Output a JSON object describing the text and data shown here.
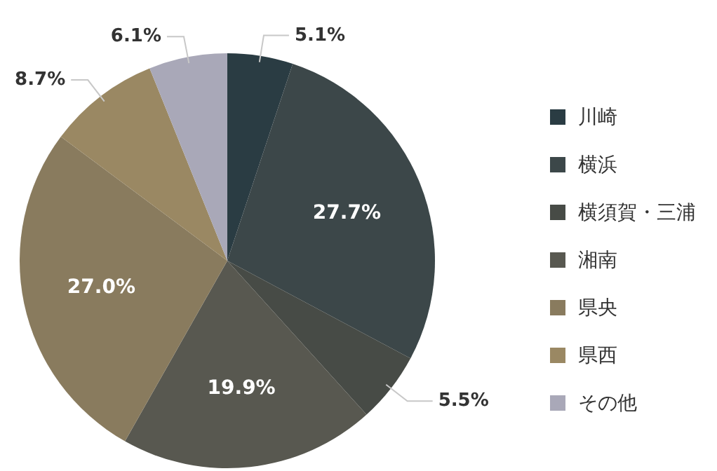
{
  "chart_data": {
    "type": "pie",
    "categories": [
      "川崎",
      "横浜",
      "横須賀・三浦",
      "湘南",
      "県央",
      "県西",
      "その他"
    ],
    "values": [
      5.1,
      27.7,
      5.5,
      19.9,
      27.0,
      8.7,
      6.1
    ],
    "value_labels": [
      "5.1%",
      "27.7%",
      "5.5%",
      "19.9%",
      "27.0%",
      "8.7%",
      "6.1%"
    ],
    "colors": [
      "#2a3c43",
      "#3c4749",
      "#474b46",
      "#585850",
      "#897b5e",
      "#9a8863",
      "#a9a8b8"
    ],
    "legend": "right"
  }
}
